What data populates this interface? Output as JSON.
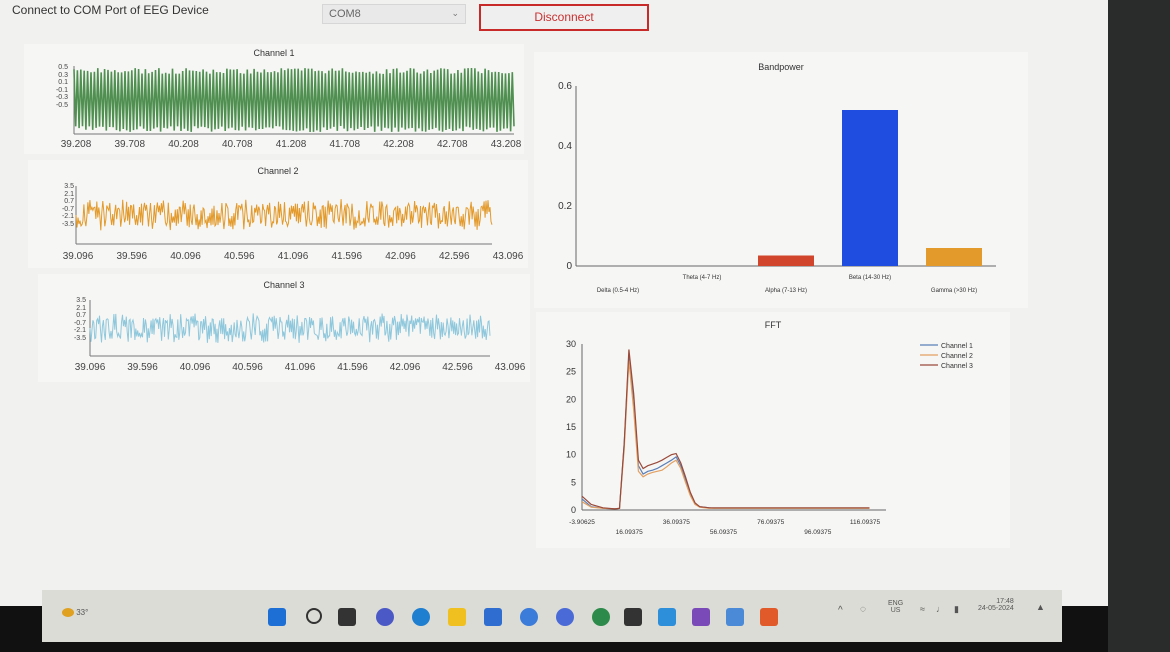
{
  "header": {
    "label": "Connect to COM Port of EEG Device",
    "port_value": "COM8",
    "disconnect_label": "Disconnect"
  },
  "channels": [
    {
      "title": "Channel 1",
      "ticks": [
        "39.208",
        "39.708",
        "40.208",
        "40.708",
        "41.208",
        "41.708",
        "42.208",
        "42.708",
        "43.208"
      ],
      "yticks": [
        "0.5",
        "0.3",
        "0.1",
        "-0.1",
        "-0.3",
        "-0.5"
      ],
      "color": "#4f8f50"
    },
    {
      "title": "Channel 2",
      "ticks": [
        "39.096",
        "39.596",
        "40.096",
        "40.596",
        "41.096",
        "41.596",
        "42.096",
        "42.596",
        "43.096"
      ],
      "yticks": [
        "3.5",
        "2.1",
        "0.7",
        "-0.7",
        "-2.1",
        "-3.5"
      ],
      "color": "#e39a2a"
    },
    {
      "title": "Channel 3",
      "ticks": [
        "39.096",
        "39.596",
        "40.096",
        "40.596",
        "41.096",
        "41.596",
        "42.096",
        "42.596",
        "43.096"
      ],
      "yticks": [
        "3.5",
        "2.1",
        "0.7",
        "-0.7",
        "-2.1",
        "-3.5"
      ],
      "color": "#8fc8dc"
    }
  ],
  "chart_data": [
    {
      "type": "bar",
      "title": "Bandpower",
      "categories": [
        "Delta (0.5-4 Hz)",
        "Theta (4-7 Hz)",
        "Alpha (7-13 Hz)",
        "Beta (14-30 Hz)",
        "Gamma (>30 Hz)"
      ],
      "values": [
        0.0,
        0.0,
        0.035,
        0.52,
        0.06
      ],
      "bar_colors": [
        "#444444",
        "#666666",
        "#d0452b",
        "#1f4de0",
        "#e39a2a"
      ],
      "yticks": [
        "0",
        "0.2",
        "0.4",
        "0.6"
      ],
      "ylim": [
        0,
        0.6
      ]
    },
    {
      "type": "line",
      "title": "FFT",
      "xticks": [
        "-3.90625",
        "16.09375",
        "36.09375",
        "56.09375",
        "76.09375",
        "96.09375",
        "116.09375"
      ],
      "yticks": [
        "0",
        "5",
        "10",
        "15",
        "20",
        "25",
        "30"
      ],
      "xlim": [
        -3.90625,
        125
      ],
      "ylim": [
        0,
        30
      ],
      "legend_position": "top-right",
      "series": [
        {
          "name": "Channel 1",
          "color": "#5a7fb8",
          "x": [
            -3.9,
            0,
            5,
            10,
            12,
            14,
            16,
            18,
            20,
            22,
            24,
            26,
            28,
            30,
            32,
            34,
            36,
            38,
            40,
            42,
            44,
            46,
            48,
            50,
            52,
            54,
            56,
            60,
            70,
            80,
            90,
            100,
            110,
            118
          ],
          "y": [
            2,
            0.6,
            0.3,
            0.2,
            0.3,
            12,
            28,
            20,
            8,
            6.5,
            7,
            7.2,
            7.5,
            8,
            8.5,
            9,
            9.6,
            8,
            5.5,
            3,
            1.2,
            0.6,
            0.5,
            0.4,
            0.3,
            0.3,
            0.3,
            0.3,
            0.3,
            0.3,
            0.3,
            0.3,
            0.3,
            0.3
          ]
        },
        {
          "name": "Channel 2",
          "color": "#e3a060",
          "x": [
            -3.9,
            0,
            5,
            10,
            12,
            14,
            16,
            18,
            20,
            22,
            24,
            26,
            28,
            30,
            32,
            34,
            36,
            38,
            40,
            42,
            44,
            46,
            48,
            50,
            52,
            54,
            56,
            60,
            70,
            80,
            90,
            100,
            110,
            118
          ],
          "y": [
            1.5,
            0.5,
            0.3,
            0.2,
            0.3,
            11,
            27,
            18,
            7,
            6,
            6.5,
            6.8,
            7,
            7.2,
            7.8,
            8.5,
            9,
            7.5,
            5,
            2.6,
            1,
            0.5,
            0.4,
            0.3,
            0.3,
            0.3,
            0.3,
            0.3,
            0.3,
            0.3,
            0.3,
            0.3,
            0.3,
            0.3
          ]
        },
        {
          "name": "Channel 3",
          "color": "#9a4a3a",
          "x": [
            -3.9,
            0,
            5,
            10,
            12,
            14,
            16,
            18,
            20,
            22,
            24,
            26,
            28,
            30,
            32,
            34,
            36,
            38,
            40,
            42,
            44,
            46,
            48,
            50,
            52,
            54,
            56,
            60,
            70,
            80,
            90,
            100,
            110,
            118
          ],
          "y": [
            2.5,
            1,
            0.4,
            0.2,
            0.3,
            12,
            29,
            21,
            9,
            7.5,
            8,
            8.3,
            8.6,
            9,
            9.5,
            10,
            10.2,
            8.5,
            6,
            3.2,
            1.3,
            0.6,
            0.5,
            0.4,
            0.4,
            0.4,
            0.4,
            0.4,
            0.4,
            0.4,
            0.4,
            0.4,
            0.4,
            0.4
          ]
        }
      ]
    }
  ],
  "taskbar": {
    "weather_temp": "33°",
    "lang_top": "ENG",
    "lang_bottom": "US",
    "time": "17:48",
    "date": "24-05-2024"
  },
  "icons": [
    "windows-icon",
    "search-icon",
    "task-view-icon",
    "chat-icon",
    "edge-icon",
    "file-explorer-icon",
    "mail-icon",
    "chrome-icon",
    "chrome-alt-icon",
    "chrome-profile-icon",
    "terminal-icon",
    "vscode-icon",
    "visual-studio-icon",
    "app-icon",
    "powerpoint-icon"
  ]
}
